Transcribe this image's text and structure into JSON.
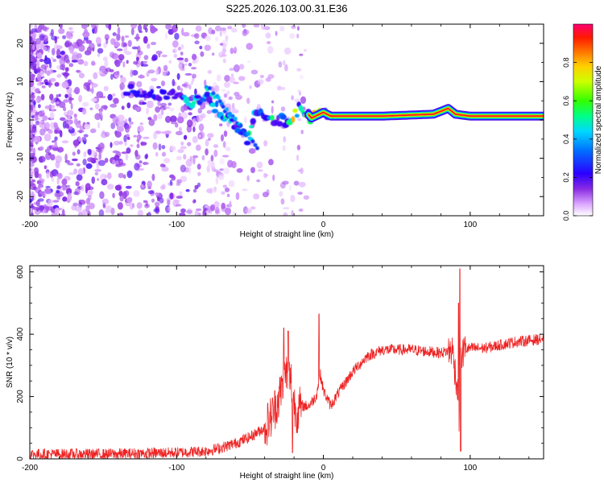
{
  "figure_title": "S225.2026.103.00.31.E36",
  "colors": {
    "snr_line": "#ee2222",
    "background": "#ffffff",
    "axis": "#000000"
  },
  "chart_data": [
    {
      "type": "heatmap",
      "title": "S225.2026.103.00.31.E36",
      "xlabel": "Height of straight line (km)",
      "ylabel": "Frequency (Hz)",
      "xlim": [
        -200,
        150
      ],
      "ylim": [
        -25,
        25
      ],
      "x_ticks": [
        -200,
        -100,
        0,
        100
      ],
      "x_tick_labels": [
        "-200",
        "-100",
        "0",
        "100"
      ],
      "y_ticks": [
        -20,
        -10,
        0,
        10,
        20
      ],
      "y_tick_labels": [
        "-20",
        "-10",
        "0",
        "10",
        "20"
      ],
      "colorbar": {
        "label": "Normalized spectral amplitude",
        "range": [
          0,
          1
        ],
        "ticks": [
          0.0,
          0.2,
          0.4,
          0.6,
          0.8
        ],
        "tick_labels": [
          "0.0",
          "0.2",
          "0.4",
          "0.6",
          "0.8"
        ],
        "colors": [
          "#ffffff",
          "#cc88ff",
          "#6600cc",
          "#0000ff",
          "#00ccff",
          "#00ff66",
          "#ffff00",
          "#ff8800",
          "#ff0000",
          "#ff0066"
        ]
      },
      "main_trace": [
        {
          "x": -130,
          "y": 7.5
        },
        {
          "x": -110,
          "y": 6.5
        },
        {
          "x": -100,
          "y": 6.0
        },
        {
          "x": -90,
          "y": 4.0
        },
        {
          "x": -80,
          "y": 6.0
        },
        {
          "x": -70,
          "y": 2.0
        },
        {
          "x": -60,
          "y": -1.0
        },
        {
          "x": -52,
          "y": -5.0
        },
        {
          "x": -45,
          "y": 2.5
        },
        {
          "x": -35,
          "y": 0.5
        },
        {
          "x": -25,
          "y": -0.5
        },
        {
          "x": -15,
          "y": 3.5
        },
        {
          "x": -8,
          "y": 0.5
        },
        {
          "x": 0,
          "y": 2.0
        },
        {
          "x": 5,
          "y": 1.0
        },
        {
          "x": 40,
          "y": 1.0
        },
        {
          "x": 75,
          "y": 1.5
        },
        {
          "x": 85,
          "y": 3.0
        },
        {
          "x": 90,
          "y": 1.5
        },
        {
          "x": 100,
          "y": 1.0
        },
        {
          "x": 150,
          "y": 1.0
        }
      ],
      "steady_band": {
        "x_start": 5,
        "x_end": 150,
        "y": 1.0,
        "level": 0.95
      }
    },
    {
      "type": "line",
      "xlabel": "Height of straight line (km)",
      "ylabel": "SNR (10 * v/v)",
      "xlim": [
        -200,
        150
      ],
      "ylim": [
        0,
        620
      ],
      "x_ticks": [
        -200,
        -100,
        0,
        100
      ],
      "x_tick_labels": [
        "-200",
        "-100",
        "0",
        "100"
      ],
      "y_ticks": [
        0,
        200,
        400,
        600
      ],
      "y_tick_labels": [
        "0",
        "200",
        "400",
        "600"
      ],
      "series": [
        {
          "name": "SNR",
          "x": [
            -200,
            -150,
            -120,
            -100,
            -80,
            -70,
            -60,
            -50,
            -40,
            -35,
            -30,
            -25,
            -22,
            -20,
            -18,
            -15,
            -10,
            -5,
            -2,
            0,
            5,
            10,
            20,
            30,
            40,
            50,
            60,
            70,
            80,
            88,
            90,
            92,
            93,
            94,
            96,
            100,
            110,
            120,
            130,
            140,
            150
          ],
          "y": [
            15,
            15,
            18,
            20,
            25,
            35,
            50,
            70,
            100,
            140,
            200,
            280,
            250,
            180,
            150,
            170,
            170,
            200,
            270,
            220,
            170,
            210,
            280,
            330,
            350,
            350,
            350,
            345,
            340,
            350,
            270,
            200,
            40,
            330,
            350,
            355,
            355,
            365,
            375,
            380,
            385
          ],
          "spikes": [
            {
              "x": -27,
              "y": 420
            },
            {
              "x": -24,
              "y": 410
            },
            {
              "x": -21,
              "y": 20
            },
            {
              "x": -3,
              "y": 465
            },
            {
              "x": 92,
              "y": 500
            },
            {
              "x": 93,
              "y": 610
            },
            {
              "x": 93.5,
              "y": 25
            }
          ],
          "noise_amplitude": 18
        }
      ]
    }
  ]
}
